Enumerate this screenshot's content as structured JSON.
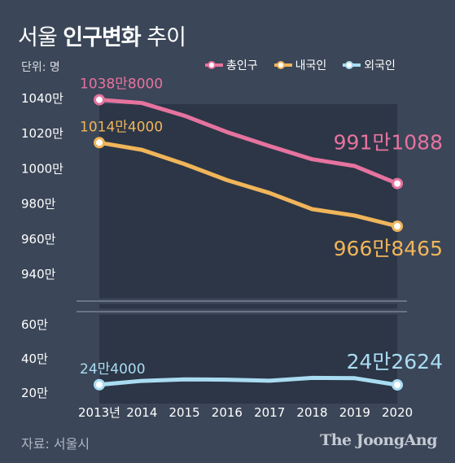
{
  "title_light": "서울 ",
  "title_bold": "인구변화",
  "title_tail": " 추이",
  "unit_label": "단위: 명",
  "source": "자료: 서울시",
  "logo": "The JoongAng",
  "colors": {
    "background": "#3b4658",
    "plot_area": "#2c3646",
    "total": "#e6739f",
    "native": "#f0b55a",
    "foreign": "#a9dcf2"
  },
  "chart_data": {
    "type": "line",
    "x": [
      "2013년",
      "2014",
      "2015",
      "2016",
      "2017",
      "2018",
      "2019",
      "2020"
    ],
    "upper_yticks": [
      "1040만",
      "1020만",
      "1000만",
      "980만",
      "960만",
      "940만"
    ],
    "lower_yticks": [
      "60만",
      "40만",
      "20만"
    ],
    "upper_ylim": [
      930,
      1045
    ],
    "lower_ylim": [
      15,
      70
    ],
    "axis_break": true,
    "grid": false,
    "legend": "top-right",
    "series": [
      {
        "name": "총인구",
        "key": "total",
        "values": [
          10388000,
          10369593,
          10297138,
          10204057,
          10124579,
          10049607,
          10010983,
          9911088
        ],
        "start_label": "1038만8000",
        "end_label": "991만1088"
      },
      {
        "name": "내국인",
        "key": "native",
        "values": [
          10144000,
          10103233,
          10022181,
          9930616,
          9857426,
          9765623,
          9729107,
          9668465
        ],
        "start_label": "1014만4000",
        "end_label": "966만8465"
      },
      {
        "name": "외국인",
        "key": "foreign",
        "values": [
          244000,
          266360,
          275000,
          273441,
          267153,
          283984,
          281876,
          242624
        ],
        "start_label": "24만4000",
        "end_label": "24만2624"
      }
    ]
  }
}
